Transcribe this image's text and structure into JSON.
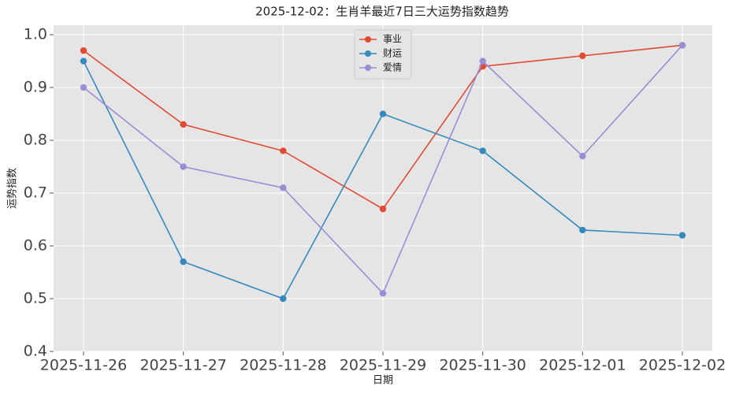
{
  "chart_data": {
    "type": "line",
    "title": "2025-12-02：生肖羊最近7日三大运势指数趋势",
    "x_label": "日期",
    "y_label": "运势指数",
    "categories": [
      "2025-11-26",
      "2025-11-27",
      "2025-11-28",
      "2025-11-29",
      "2025-11-30",
      "2025-12-01",
      "2025-12-02"
    ],
    "series": [
      {
        "name": "事业",
        "color": "#E24A33",
        "values": [
          0.97,
          0.83,
          0.78,
          0.67,
          0.94,
          0.96,
          0.98
        ]
      },
      {
        "name": "财运",
        "color": "#348ABD",
        "values": [
          0.95,
          0.57,
          0.5,
          0.85,
          0.78,
          0.63,
          0.62
        ]
      },
      {
        "name": "爱情",
        "color": "#988ED5",
        "values": [
          0.9,
          0.75,
          0.71,
          0.51,
          0.95,
          0.77,
          0.98
        ]
      }
    ],
    "ylim": [
      0.4,
      1.018
    ],
    "yticks": [
      0.4,
      0.5,
      0.6,
      0.7,
      0.8,
      0.9,
      {
        "value": 1,
        "label": "1.0"
      }
    ],
    "grid": true,
    "legend": "upper center"
  }
}
